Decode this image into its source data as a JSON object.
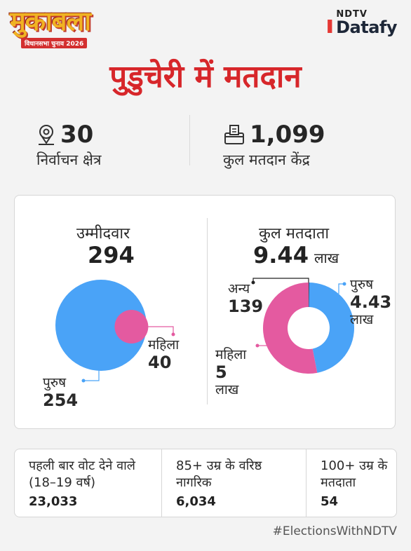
{
  "header": {
    "logo_title": "मुकाबला",
    "logo_subtitle": "विधानसभा चुनाव 2026",
    "brand_top": "NDTV",
    "brand_main": "Datafy"
  },
  "title": "पुडुचेरी में मतदान",
  "stats": {
    "constituencies": {
      "value": "30",
      "label": "निर्वाचन क्षेत्र",
      "icon": "location-pin-icon"
    },
    "polling_stations": {
      "value": "1,099",
      "label": "कुल मतदान केंद्र",
      "icon": "ballot-box-icon"
    }
  },
  "candidates": {
    "heading": "उम्मीदवार",
    "total": "294",
    "female_label": "महिला",
    "female_value": "40",
    "male_label": "पुरुष",
    "male_value": "254"
  },
  "voters": {
    "heading": "कुल मतदाता",
    "total": "9.44",
    "total_unit": "लाख",
    "other_label": "अन्य",
    "other_value": "139",
    "male_label": "पुरुष",
    "male_value": "4.43",
    "male_unit": "लाख",
    "female_label": "महिला",
    "female_value": "5",
    "female_unit": "लाख"
  },
  "chart_data": [
    {
      "type": "pie",
      "title": "उम्मीदवार",
      "categories": [
        "पुरुष",
        "महिला"
      ],
      "values": [
        254,
        40
      ],
      "colors": [
        "#4aa3f7",
        "#e45aa0"
      ]
    },
    {
      "type": "pie",
      "title": "कुल मतदाता",
      "categories": [
        "पुरुष",
        "महिला",
        "अन्य"
      ],
      "values": [
        4.43,
        5,
        0.00139
      ],
      "unit": "लाख",
      "colors": [
        "#4aa3f7",
        "#e45aa0",
        "#222222"
      ]
    }
  ],
  "bottom": {
    "first_time": {
      "label": "पहली बार वोट देने वाले (18–19 वर्ष)",
      "value": "23,033"
    },
    "senior": {
      "label": "85+ उम्र के वरिष्ठ नागरिक",
      "value": "6,034"
    },
    "centenarian": {
      "label": "100+ उम्र के मतदाता",
      "value": "54"
    }
  },
  "hashtag": "#ElectionsWithNDTV",
  "colors": {
    "accent_red": "#d7262a",
    "male_blue": "#4aa3f7",
    "female_pink": "#e45aa0"
  }
}
